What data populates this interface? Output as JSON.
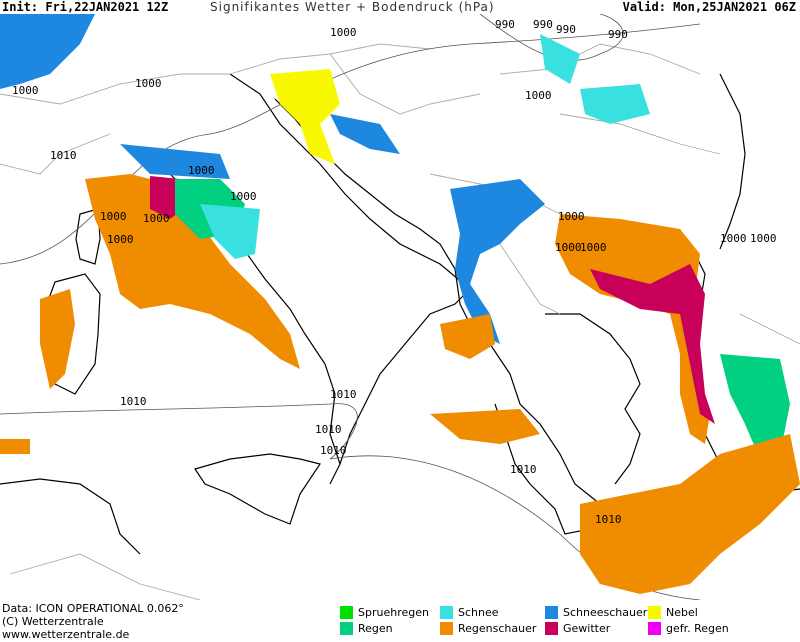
{
  "header": {
    "init": "Init: Fri,22JAN2021 12Z",
    "title": "Signifikantes Wetter +  Bodendruck (hPa)",
    "valid": "Valid: Mon,25JAN2021 06Z"
  },
  "footer": {
    "data_line": "Data: ICON OPERATIONAL 0.062°",
    "copyright": "(C) Wetterzentrale",
    "website": "www.wetterzentrale.de"
  },
  "legend": [
    {
      "label": "Spruehregen",
      "color": "#00e000"
    },
    {
      "label": "Regen",
      "color": "#00d080"
    },
    {
      "label": "Schnee",
      "color": "#38e0e0"
    },
    {
      "label": "Regenschauer",
      "color": "#f08c00"
    },
    {
      "label": "Schneeschauer",
      "color": "#1e88e0"
    },
    {
      "label": "Gewitter",
      "color": "#c8005a"
    },
    {
      "label": "Nebel",
      "color": "#f8f800"
    },
    {
      "label": "gefr. Regen",
      "color": "#f000f0"
    }
  ],
  "isobar_labels": [
    "1000",
    "1010",
    "1000",
    "1000",
    "1000",
    "1000",
    "1000",
    "1000",
    "1000",
    "1000",
    "1010",
    "1010",
    "1010",
    "1010",
    "1010",
    "1010",
    "990",
    "990",
    "990",
    "990",
    "1000",
    "1000",
    "1000",
    "1000",
    "1000"
  ]
}
